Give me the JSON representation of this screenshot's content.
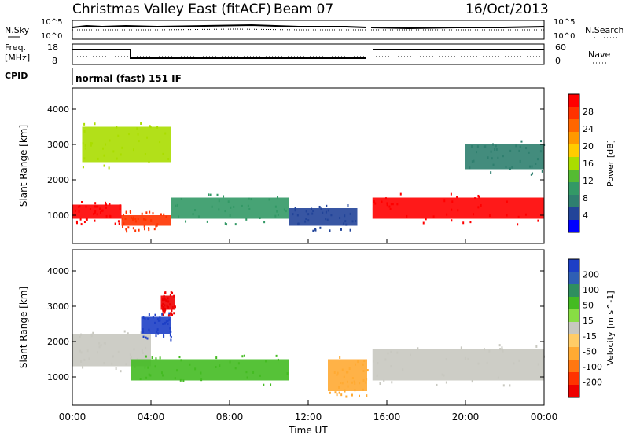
{
  "header": {
    "title": "Christmas Valley East (fitACF)",
    "beam": "Beam 07",
    "date": "16/Oct/2013"
  },
  "summary_panels": {
    "nsky_label": "N.Sky",
    "nsky_ticks": [
      "10^5",
      "10^0"
    ],
    "nsearch_label": "N.Search",
    "nsearch_ticks": [
      "10^5",
      "10^0"
    ],
    "freq_label": "Freq.",
    "freq_unit": "[MHz]",
    "freq_ticks": [
      "18",
      "8"
    ],
    "nave_label": "Nave",
    "nave_ticks": [
      "60",
      "0"
    ],
    "cpid_label": "CPID",
    "cpid_text": "normal (fast) 151 IF"
  },
  "colorbars": {
    "power": {
      "label": "Power [dB]",
      "ticks": [
        "28",
        "24",
        "20",
        "16",
        "12",
        "8",
        "4"
      ],
      "colors": [
        "#ff0000",
        "#ff3300",
        "#ff6600",
        "#ff9900",
        "#ffcc00",
        "#aadd00",
        "#55bb33",
        "#339966",
        "#2f7f6f",
        "#224499",
        "#0000ff"
      ]
    },
    "velocity": {
      "label": "Velocity [m s^-1]",
      "ticks": [
        "200",
        "100",
        "50",
        "15",
        "-15",
        "-50",
        "-100",
        "-200"
      ],
      "colors": [
        "#1d3fc6",
        "#2f5fb4",
        "#2f8f5f",
        "#44bb22",
        "#88dd44",
        "#c8c8c0",
        "#ffcc66",
        "#ffaa33",
        "#ff7711",
        "#ff3300",
        "#ee0000"
      ]
    }
  },
  "chart_data": [
    {
      "type": "heatmap",
      "panel": "power",
      "ylabel": "Slant Range [km]",
      "xlabel": "",
      "xlim": [
        "00:00",
        "24:00"
      ],
      "ylim": [
        200,
        4600
      ],
      "yticks": [
        1000,
        2000,
        3000,
        4000
      ],
      "xticks": [
        "00:00",
        "04:00",
        "08:00",
        "12:00",
        "16:00",
        "20:00",
        "00:00"
      ],
      "bands": [
        {
          "t": [
            0.0,
            2.5
          ],
          "range": [
            900,
            1300
          ],
          "value": 28
        },
        {
          "t": [
            2.5,
            5.0
          ],
          "range": [
            700,
            1000
          ],
          "value": 24
        },
        {
          "t": [
            5.0,
            11.0
          ],
          "range": [
            900,
            1500
          ],
          "value": 12
        },
        {
          "t": [
            11.0,
            14.5
          ],
          "range": [
            700,
            1200
          ],
          "value": 8
        },
        {
          "t": [
            15.2,
            24.0
          ],
          "range": [
            900,
            1500
          ],
          "value": 26
        },
        {
          "t": [
            0.5,
            5.0
          ],
          "range": [
            2500,
            3500
          ],
          "value": 16
        },
        {
          "t": [
            20.0,
            24.0
          ],
          "range": [
            2300,
            3000
          ],
          "value": 10
        }
      ]
    },
    {
      "type": "heatmap",
      "panel": "velocity",
      "ylabel": "Slant Range [km]",
      "xlabel": "Time UT",
      "xlim": [
        "00:00",
        "24:00"
      ],
      "ylim": [
        200,
        4600
      ],
      "yticks": [
        1000,
        2000,
        3000,
        4000
      ],
      "xticks": [
        "00:00",
        "04:00",
        "08:00",
        "12:00",
        "16:00",
        "20:00",
        "00:00"
      ],
      "bands": [
        {
          "t": [
            0.0,
            4.0
          ],
          "range": [
            1300,
            2200
          ],
          "value": 0
        },
        {
          "t": [
            3.0,
            11.0
          ],
          "range": [
            900,
            1500
          ],
          "value": 60
        },
        {
          "t": [
            3.5,
            5.0
          ],
          "range": [
            2200,
            2700
          ],
          "value": 180
        },
        {
          "t": [
            4.5,
            5.2
          ],
          "range": [
            2900,
            3300
          ],
          "value": -200
        },
        {
          "t": [
            15.2,
            24.0
          ],
          "range": [
            900,
            1800
          ],
          "value": 0
        },
        {
          "t": [
            13.0,
            15.0
          ],
          "range": [
            600,
            1500
          ],
          "value": -60
        }
      ]
    }
  ]
}
